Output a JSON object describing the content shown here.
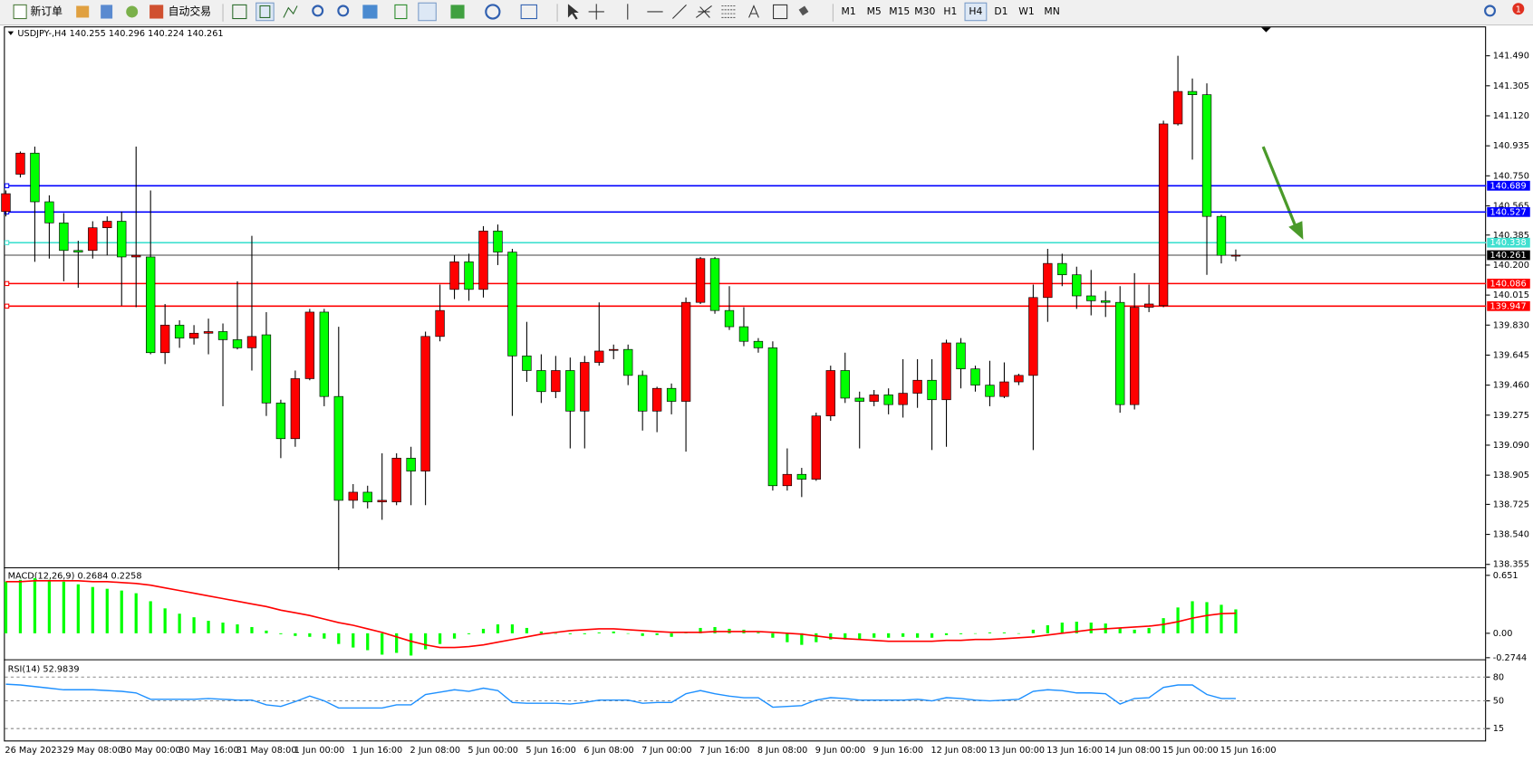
{
  "toolbar": {
    "new_order": "新订单",
    "auto_trading": "自动交易",
    "timeframes": [
      "M1",
      "M5",
      "M15",
      "M30",
      "H1",
      "H4",
      "D1",
      "W1",
      "MN"
    ],
    "active": "H4",
    "badge": 1
  },
  "chart_data": [
    {
      "type": "candlestick",
      "title": "USDJPY-,H4",
      "categories": [
        "26 May 2023",
        null,
        null,
        null,
        "29 May 08:00",
        null,
        null,
        null,
        "30 May 00:00",
        null,
        null,
        null,
        "30 May 16:00",
        null,
        null,
        null,
        "31 May 08:00",
        null,
        null,
        null,
        "1 Jun 00:00",
        null,
        null,
        null,
        "1 Jun 16:00",
        null,
        null,
        null,
        "2 Jun 08:00",
        null,
        null,
        null,
        "5 Jun 00:00",
        null,
        null,
        null,
        "5 Jun 16:00",
        null,
        null,
        null,
        "6 Jun 08:00",
        null,
        null,
        null,
        "7 Jun 00:00",
        null,
        null,
        null,
        "7 Jun 16:00",
        null,
        null,
        null,
        "8 Jun 08:00",
        null,
        null,
        null,
        "9 Jun 00:00",
        null,
        null,
        null,
        "9 Jun 16:00",
        null,
        null,
        null,
        "12 Jun 08:00",
        null,
        null,
        null,
        "13 Jun 00:00",
        null,
        null,
        null,
        "13 Jun 16:00",
        null,
        null,
        null,
        "14 Jun 08:00",
        null,
        null,
        null,
        "15 Jun 00:00",
        null,
        null,
        null,
        "15 Jun 16:00",
        null
      ],
      "open": [
        140.53,
        140.76,
        140.89,
        140.59,
        140.46,
        140.29,
        140.29,
        140.43,
        140.47,
        140.25,
        140.25,
        139.66,
        139.83,
        139.75,
        139.78,
        139.79,
        139.74,
        139.69,
        139.77,
        139.35,
        139.13,
        139.5,
        139.91,
        139.39,
        138.75,
        138.8,
        138.74,
        138.74,
        139.01,
        138.93,
        139.76,
        140.05,
        140.22,
        140.05,
        140.41,
        140.28,
        139.64,
        139.55,
        139.42,
        139.55,
        139.3,
        139.6,
        139.68,
        139.68,
        139.52,
        139.3,
        139.44,
        139.36,
        139.97,
        140.24,
        139.92,
        139.82,
        139.73,
        139.69,
        138.84,
        138.91,
        138.88,
        139.27,
        139.55,
        139.38,
        139.36,
        139.4,
        139.34,
        139.41,
        139.49,
        139.37,
        139.72,
        139.56,
        139.46,
        139.39,
        139.48,
        139.52,
        140.0,
        140.21,
        140.14,
        140.01,
        139.98,
        139.97,
        139.34,
        139.94,
        139.95,
        141.07,
        141.27,
        141.25,
        140.5,
        140.255
      ],
      "high": [
        140.66,
        140.9,
        140.93,
        140.63,
        140.52,
        140.35,
        140.47,
        140.5,
        140.53,
        140.93,
        140.66,
        139.96,
        139.86,
        139.83,
        139.87,
        139.84,
        140.1,
        140.38,
        139.91,
        139.37,
        139.55,
        139.93,
        139.93,
        139.82,
        138.85,
        138.84,
        139.04,
        139.04,
        139.08,
        139.79,
        140.08,
        140.26,
        140.27,
        140.44,
        140.45,
        140.3,
        139.85,
        139.65,
        139.64,
        139.63,
        139.64,
        139.97,
        139.71,
        139.71,
        139.55,
        139.45,
        139.47,
        140.0,
        140.25,
        140.25,
        140.07,
        139.94,
        139.75,
        139.73,
        139.07,
        138.95,
        139.29,
        139.58,
        139.66,
        139.42,
        139.43,
        139.44,
        139.62,
        139.62,
        139.62,
        139.74,
        139.75,
        139.58,
        139.61,
        139.6,
        139.53,
        140.08,
        140.3,
        140.27,
        140.19,
        140.17,
        140.04,
        140.07,
        140.15,
        140.08,
        141.09,
        141.49,
        141.35,
        141.32,
        140.51,
        140.296
      ],
      "low": [
        140.5,
        140.74,
        140.22,
        140.24,
        140.1,
        140.06,
        140.24,
        140.26,
        139.95,
        139.94,
        139.65,
        139.59,
        139.69,
        139.71,
        139.65,
        139.33,
        139.68,
        139.55,
        139.27,
        139.01,
        139.08,
        139.49,
        139.33,
        138.32,
        138.7,
        138.7,
        138.63,
        138.72,
        138.72,
        138.72,
        139.73,
        139.99,
        139.98,
        140.0,
        140.2,
        139.27,
        139.48,
        139.35,
        139.38,
        139.07,
        139.07,
        139.58,
        139.62,
        139.46,
        139.18,
        139.17,
        139.28,
        139.05,
        139.96,
        139.9,
        139.8,
        139.7,
        139.66,
        138.81,
        138.81,
        138.77,
        138.87,
        139.24,
        139.35,
        139.07,
        139.33,
        139.28,
        139.26,
        139.32,
        139.06,
        139.08,
        139.44,
        139.42,
        139.33,
        139.38,
        139.46,
        139.06,
        139.85,
        140.07,
        139.93,
        139.89,
        139.88,
        139.29,
        139.31,
        139.91,
        139.94,
        141.06,
        140.85,
        140.14,
        140.21,
        140.224
      ],
      "close": [
        140.64,
        140.89,
        140.59,
        140.46,
        140.29,
        140.28,
        140.43,
        140.47,
        140.25,
        140.26,
        139.66,
        139.83,
        139.75,
        139.78,
        139.79,
        139.74,
        139.69,
        139.76,
        139.35,
        139.13,
        139.5,
        139.91,
        139.39,
        138.75,
        138.8,
        138.74,
        138.75,
        139.01,
        138.93,
        139.76,
        139.92,
        140.22,
        140.05,
        140.41,
        140.28,
        139.64,
        139.55,
        139.42,
        139.55,
        139.3,
        139.6,
        139.67,
        139.68,
        139.52,
        139.3,
        139.44,
        139.36,
        139.97,
        140.24,
        139.92,
        139.82,
        139.73,
        139.69,
        138.84,
        138.91,
        138.88,
        139.27,
        139.55,
        139.38,
        139.36,
        139.4,
        139.34,
        139.41,
        139.49,
        139.37,
        139.72,
        139.56,
        139.46,
        139.39,
        139.48,
        139.52,
        140.0,
        140.21,
        140.14,
        140.01,
        139.98,
        139.97,
        139.34,
        139.94,
        139.96,
        141.07,
        141.27,
        141.25,
        140.5,
        140.26,
        140.261
      ],
      "up_color": "#ff0000",
      "down_color": "#00ff00",
      "ylim": [
        138.337,
        141.665
      ],
      "yticks": [
        {
          "value": 141.49,
          "label": "141.490"
        },
        141.305,
        {
          "value": 141.12,
          "label": "141.120"
        },
        140.935,
        {
          "value": 140.75,
          "label": "140.750"
        },
        140.565,
        140.385,
        {
          "value": 140.2,
          "label": "140.200"
        },
        140.015,
        {
          "value": 139.83,
          "label": "139.830"
        },
        139.645,
        {
          "value": 139.46,
          "label": "139.460"
        },
        139.275,
        {
          "value": 139.09,
          "label": "139.090"
        },
        138.905,
        138.725,
        {
          "value": 138.54,
          "label": "138.540"
        },
        138.355
      ],
      "hlines": [
        {
          "value": 140.689,
          "color": "#0000ff"
        },
        {
          "value": 140.527,
          "color": "#0000ff"
        },
        {
          "value": 140.338,
          "color": "#40e0d0"
        },
        {
          "value": 140.086,
          "color": "#ff0000"
        },
        {
          "value": 139.947,
          "color": "#ff0000"
        }
      ]
    },
    {
      "type": "macd",
      "title": "MACD(12,26,9)",
      "histogram": {
        "color": "#00ff00",
        "values": [
          0.58,
          0.6,
          0.62,
          0.6,
          0.58,
          0.55,
          0.52,
          0.5,
          0.48,
          0.45,
          0.36,
          0.28,
          0.22,
          0.18,
          0.14,
          0.12,
          0.1,
          0.07,
          0.03,
          -0.01,
          -0.03,
          -0.04,
          -0.06,
          -0.12,
          -0.16,
          -0.19,
          -0.24,
          -0.22,
          -0.25,
          -0.18,
          -0.12,
          -0.06,
          -0.01,
          0.05,
          0.1,
          0.1,
          0.06,
          0.02,
          0.0,
          -0.01,
          -0.01,
          0.01,
          0.02,
          0.0,
          -0.03,
          -0.02,
          -0.04,
          0.01,
          0.06,
          0.07,
          0.05,
          0.04,
          0.01,
          -0.05,
          -0.1,
          -0.13,
          -0.1,
          -0.07,
          -0.07,
          -0.07,
          -0.05,
          -0.05,
          -0.04,
          -0.05,
          -0.05,
          -0.02,
          -0.01,
          0.0,
          0.01,
          0.01,
          0.0,
          0.04,
          0.09,
          0.12,
          0.13,
          0.12,
          0.11,
          0.06,
          0.04,
          0.06,
          0.17,
          0.29,
          0.36,
          0.35,
          0.32,
          0.2684
        ]
      },
      "signal": {
        "color": "#ff0000",
        "values": [
          0.58,
          0.58,
          0.59,
          0.59,
          0.59,
          0.59,
          0.58,
          0.58,
          0.57,
          0.56,
          0.54,
          0.51,
          0.48,
          0.45,
          0.42,
          0.39,
          0.36,
          0.33,
          0.3,
          0.26,
          0.23,
          0.2,
          0.16,
          0.12,
          0.09,
          0.05,
          0.01,
          -0.04,
          -0.09,
          -0.13,
          -0.16,
          -0.16,
          -0.15,
          -0.13,
          -0.1,
          -0.07,
          -0.04,
          -0.01,
          0.01,
          0.03,
          0.04,
          0.05,
          0.05,
          0.04,
          0.03,
          0.02,
          0.01,
          0.01,
          0.01,
          0.02,
          0.02,
          0.02,
          0.02,
          0.01,
          0.0,
          -0.01,
          -0.03,
          -0.05,
          -0.06,
          -0.07,
          -0.08,
          -0.09,
          -0.09,
          -0.09,
          -0.09,
          -0.08,
          -0.08,
          -0.07,
          -0.07,
          -0.06,
          -0.05,
          -0.04,
          -0.02,
          0.0,
          0.02,
          0.04,
          0.05,
          0.06,
          0.07,
          0.08,
          0.1,
          0.13,
          0.17,
          0.2,
          0.22,
          0.2258
        ]
      },
      "ylim": [
        -0.292,
        0.719
      ],
      "yticks": [
        0.651,
        {
          "value": 0,
          "label": "0.00"
        },
        -0.2744
      ]
    },
    {
      "type": "line",
      "title": "RSI(14)",
      "color": "#1e90ff",
      "values": [
        71,
        70,
        68,
        66,
        64,
        64,
        64,
        63,
        62,
        60,
        52,
        52,
        52,
        52,
        53,
        52,
        51,
        51,
        45,
        43,
        49,
        56,
        50,
        41,
        41,
        41,
        41,
        45,
        45,
        58,
        61,
        64,
        62,
        66,
        63,
        48,
        47,
        47,
        47,
        46,
        48,
        51,
        51,
        51,
        47,
        48,
        48,
        59,
        63,
        59,
        56,
        54,
        54,
        42,
        43,
        44,
        51,
        54,
        53,
        51,
        51,
        51,
        51,
        52,
        50,
        54,
        53,
        51,
        50,
        51,
        52,
        62,
        64,
        63,
        60,
        60,
        59,
        46,
        53,
        54,
        67,
        70,
        70,
        58,
        53,
        52.9839
      ],
      "ylim": [
        0,
        100
      ],
      "yticks": [
        80,
        50,
        15
      ],
      "grid": true
    }
  ]
}
